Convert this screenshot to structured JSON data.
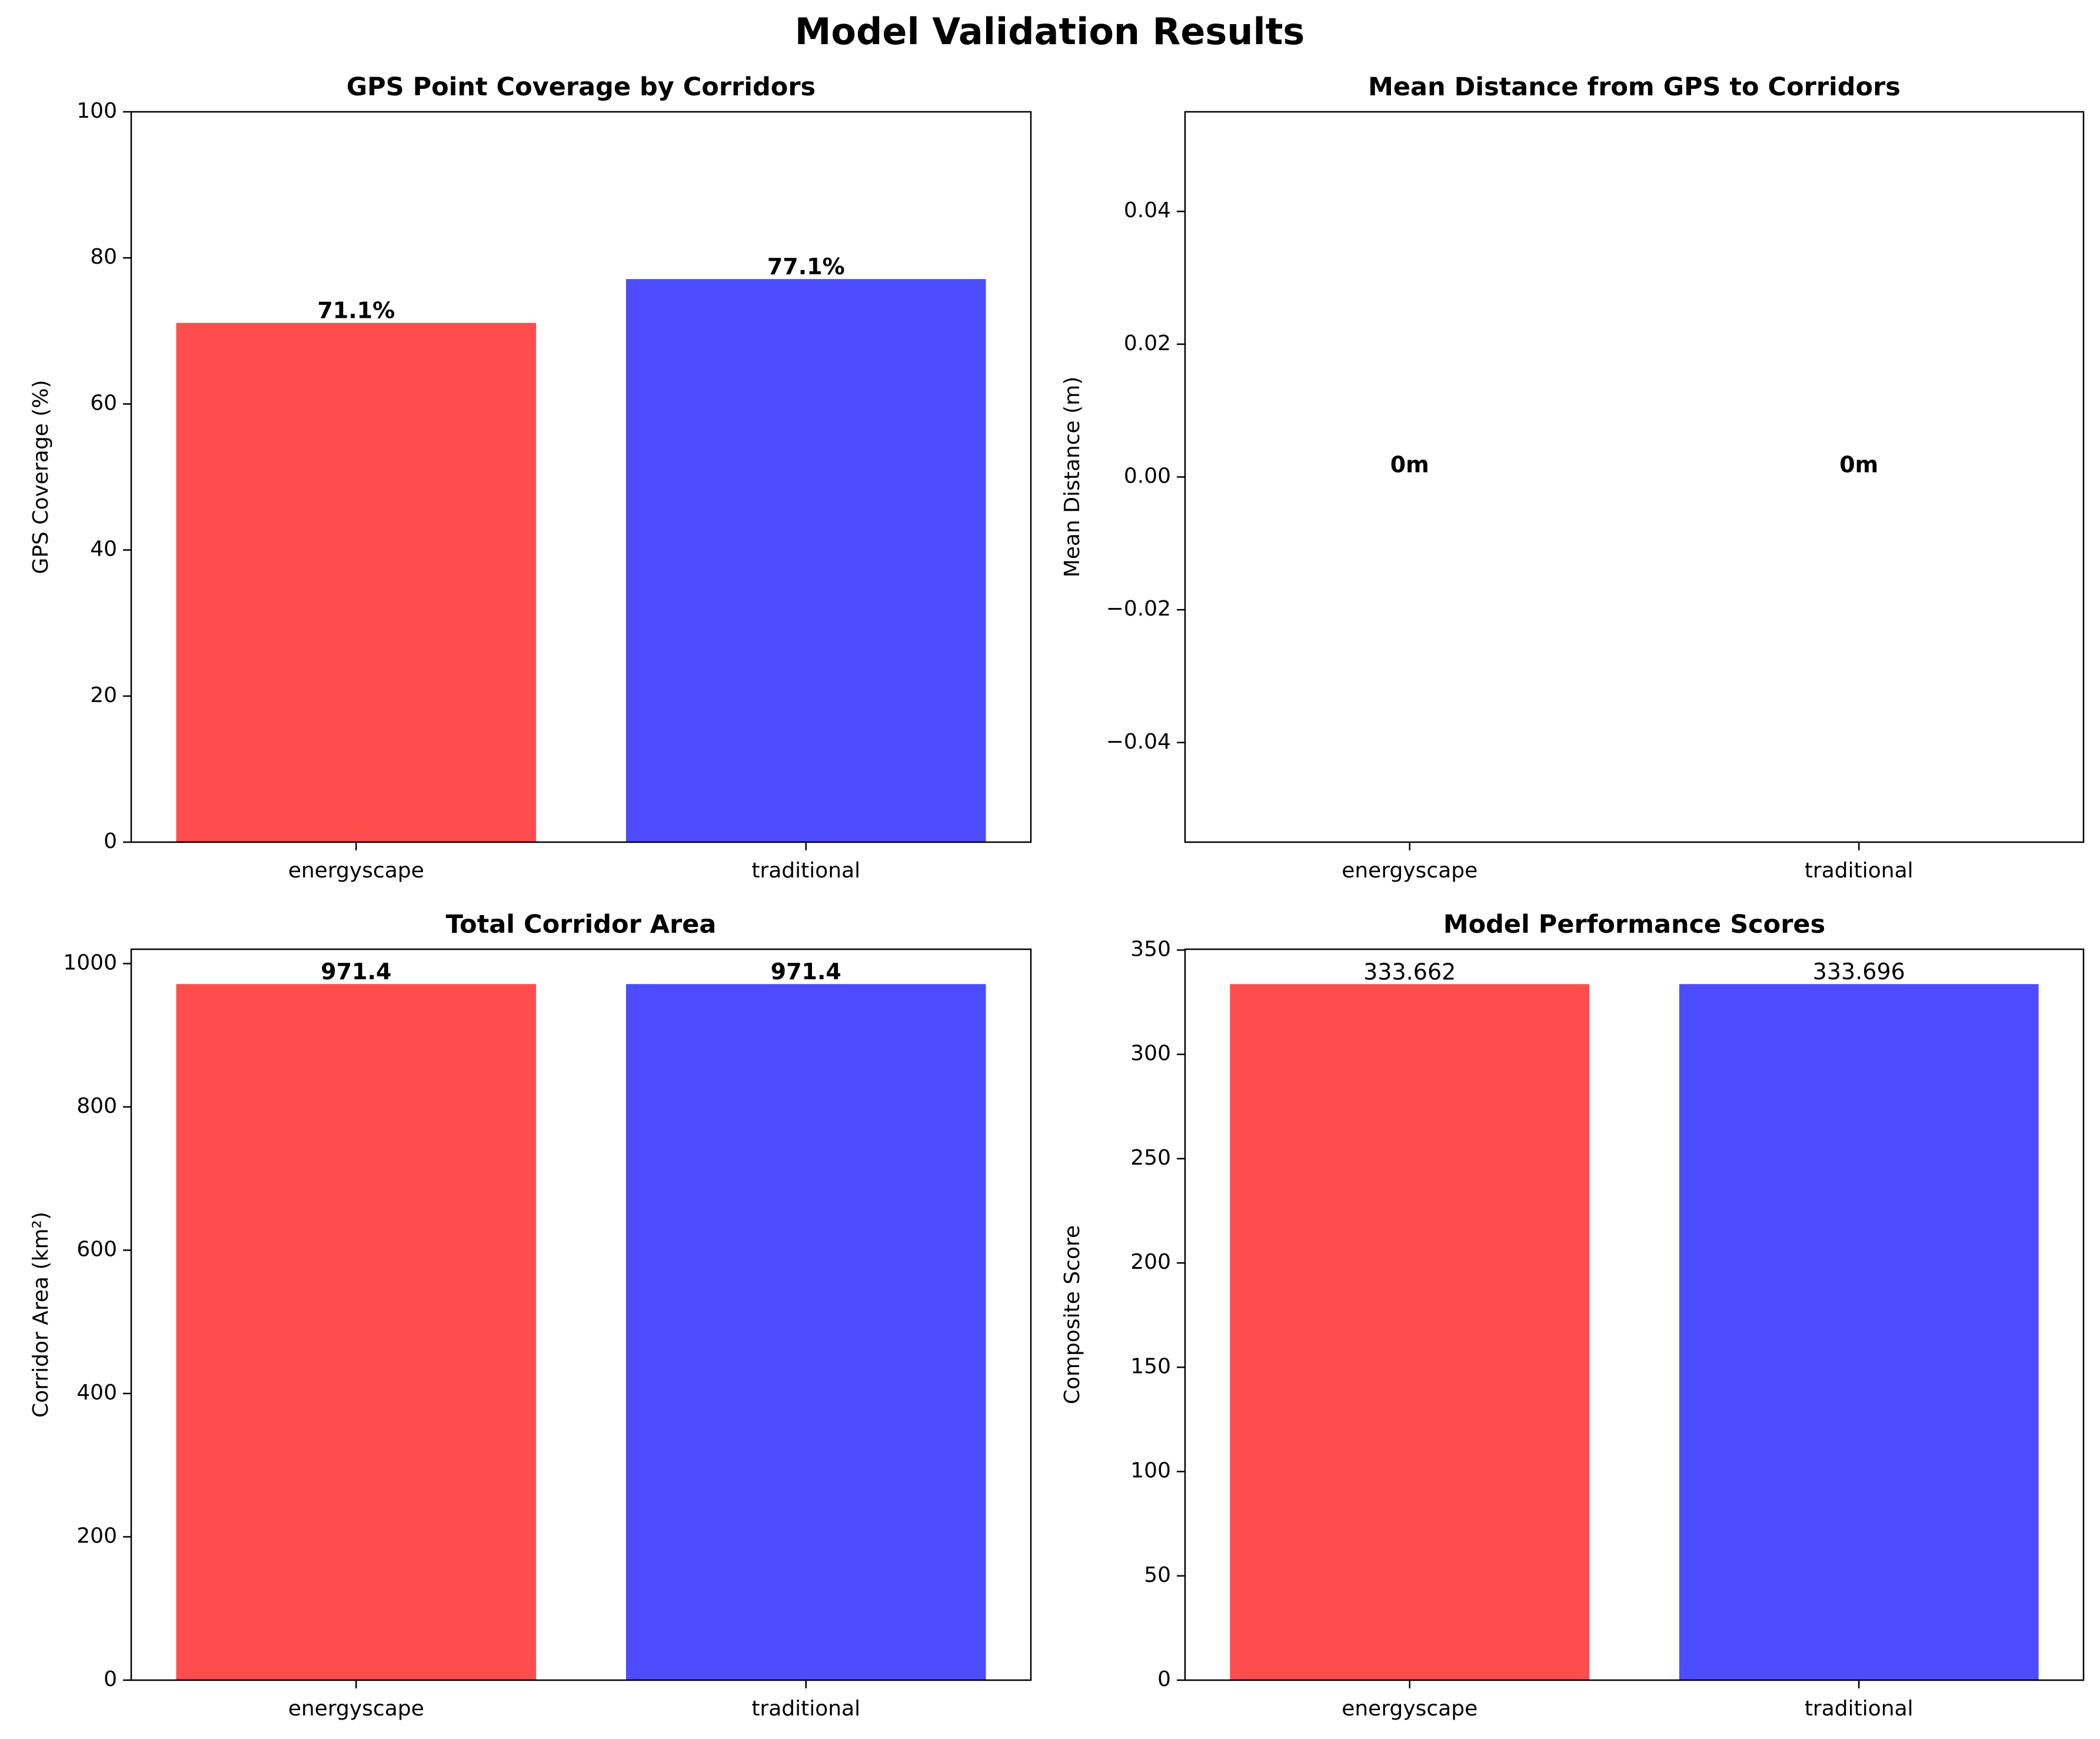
{
  "figure": {
    "suptitle": "Model Validation Results"
  },
  "chart_data": [
    {
      "type": "bar",
      "title": "GPS Point Coverage by Corridors",
      "ylabel": "GPS Coverage (%)",
      "xlabel": "",
      "categories": [
        "energyscape",
        "traditional"
      ],
      "values": [
        71.1,
        77.1
      ],
      "bar_labels": [
        "71.1%",
        "77.1%"
      ],
      "bar_label_bold": true,
      "ylim": [
        0,
        100
      ],
      "yticks": [
        0,
        20,
        40,
        60,
        80,
        100
      ],
      "ytick_labels": [
        "0",
        "20",
        "40",
        "60",
        "80",
        "100"
      ],
      "colors": [
        "#ff4d4d",
        "#4d4dff"
      ],
      "grid": false
    },
    {
      "type": "bar",
      "title": "Mean Distance from GPS to Corridors",
      "ylabel": "Mean Distance (m)",
      "xlabel": "",
      "categories": [
        "energyscape",
        "traditional"
      ],
      "values": [
        0,
        0
      ],
      "bar_labels": [
        "0m",
        "0m"
      ],
      "bar_label_bold": true,
      "ylim": [
        -0.055,
        0.055
      ],
      "yticks": [
        -0.04,
        -0.02,
        0,
        0.02,
        0.04
      ],
      "ytick_labels": [
        "−0.04",
        "−0.02",
        "0.00",
        "0.02",
        "0.04"
      ],
      "colors": [
        "#ff4d4d",
        "#4d4dff"
      ],
      "grid": false
    },
    {
      "type": "bar",
      "title": "Total Corridor Area",
      "ylabel": "Corridor Area (km²)",
      "xlabel": "",
      "categories": [
        "energyscape",
        "traditional"
      ],
      "values": [
        971.4,
        971.4
      ],
      "bar_labels": [
        "971.4",
        "971.4"
      ],
      "bar_label_bold": true,
      "ylim": [
        0,
        1020
      ],
      "yticks": [
        0,
        200,
        400,
        600,
        800,
        1000
      ],
      "ytick_labels": [
        "0",
        "200",
        "400",
        "600",
        "800",
        "1000"
      ],
      "colors": [
        "#ff4d4d",
        "#4d4dff"
      ],
      "grid": false
    },
    {
      "type": "bar",
      "title": "Model Performance Scores",
      "ylabel": "Composite Score",
      "xlabel": "",
      "categories": [
        "energyscape",
        "traditional"
      ],
      "values": [
        333.662,
        333.696
      ],
      "bar_labels": [
        "333.662",
        "333.696"
      ],
      "bar_label_bold": false,
      "ylim": [
        0,
        350.4
      ],
      "yticks": [
        0,
        50,
        100,
        150,
        200,
        250,
        300,
        350
      ],
      "ytick_labels": [
        "0",
        "50",
        "100",
        "150",
        "200",
        "250",
        "300",
        "350"
      ],
      "colors": [
        "#ff4d4d",
        "#4d4dff"
      ],
      "grid": false
    }
  ]
}
